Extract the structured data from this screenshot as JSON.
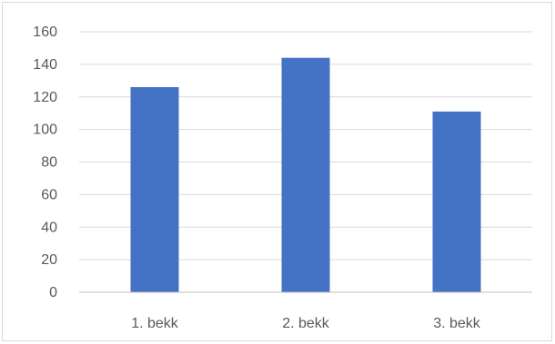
{
  "chart_data": {
    "type": "bar",
    "categories": [
      "1. bekk",
      "2. bekk",
      "3. bekk"
    ],
    "values": [
      126,
      144,
      111
    ],
    "title": "",
    "xlabel": "",
    "ylabel": "",
    "ylim": [
      0,
      160
    ],
    "yticks": [
      0,
      20,
      40,
      60,
      80,
      100,
      120,
      140,
      160
    ],
    "grid": true,
    "bar_color": "#4472c4"
  }
}
